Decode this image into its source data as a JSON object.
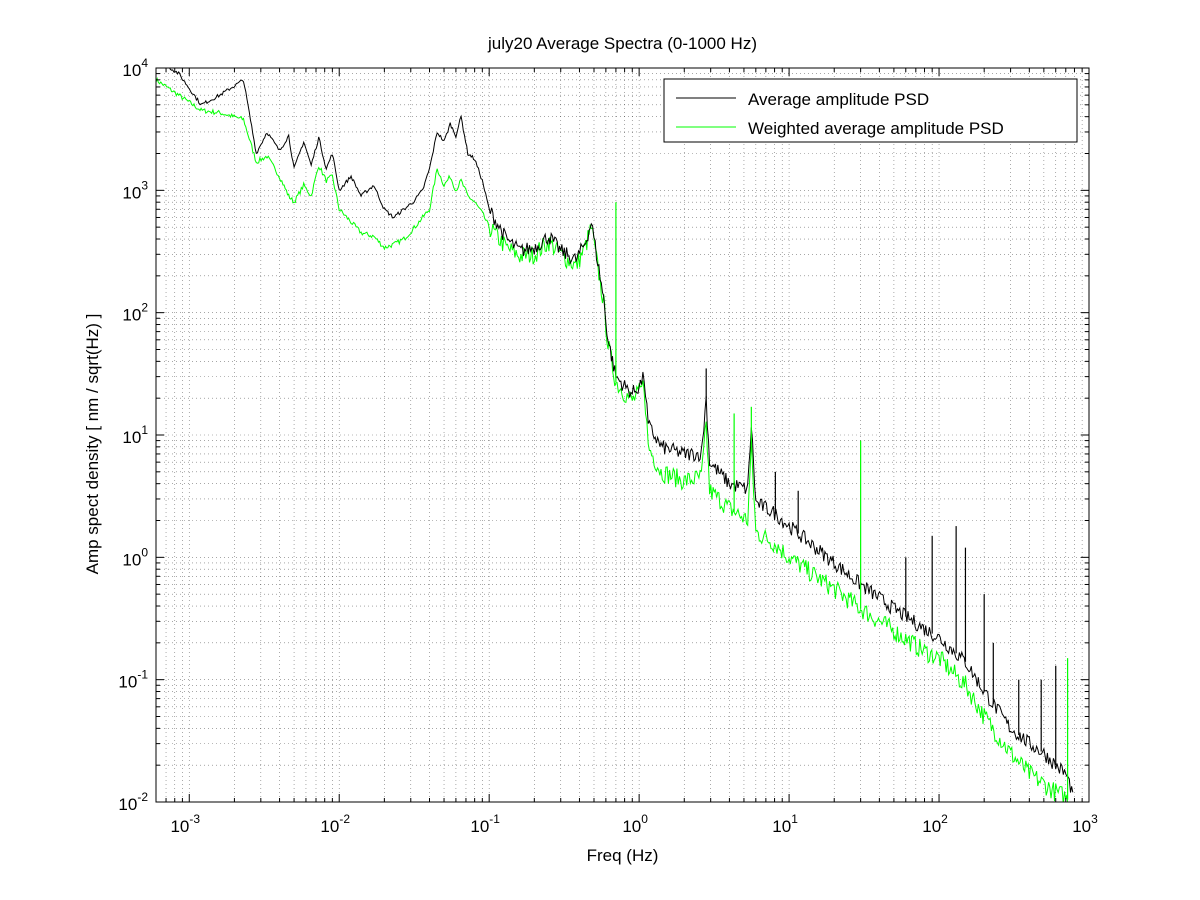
{
  "chart_data": {
    "type": "line",
    "title": "july20 Average Spectra (0-1000 Hz)",
    "xlabel": "Freq (Hz)",
    "ylabel": "Amp spect density [ nm / sqrt(Hz) ]",
    "x_scale": "log",
    "y_scale": "log",
    "xlim": [
      0.0006,
      1000
    ],
    "ylim": [
      0.01,
      10000
    ],
    "grid": true,
    "legend_position": "top-right",
    "x_ticks": [
      {
        "value": 0.001,
        "base": "10",
        "exp": "-3"
      },
      {
        "value": 0.01,
        "base": "10",
        "exp": "-2"
      },
      {
        "value": 0.1,
        "base": "10",
        "exp": "-1"
      },
      {
        "value": 1,
        "base": "10",
        "exp": "0"
      },
      {
        "value": 10,
        "base": "10",
        "exp": "1"
      },
      {
        "value": 100,
        "base": "10",
        "exp": "2"
      },
      {
        "value": 1000,
        "base": "10",
        "exp": "3"
      }
    ],
    "y_ticks": [
      {
        "value": 0.01,
        "base": "10",
        "exp": "-2"
      },
      {
        "value": 0.1,
        "base": "10",
        "exp": "-1"
      },
      {
        "value": 1,
        "base": "10",
        "exp": "0"
      },
      {
        "value": 10,
        "base": "10",
        "exp": "1"
      },
      {
        "value": 100,
        "base": "10",
        "exp": "2"
      },
      {
        "value": 1000,
        "base": "10",
        "exp": "3"
      },
      {
        "value": 10000,
        "base": "10",
        "exp": "4"
      }
    ],
    "series": [
      {
        "name": "Average amplitude PSD",
        "color": "#000000",
        "points": [
          [
            0.0006,
            12000
          ],
          [
            0.00085,
            9000
          ],
          [
            0.0012,
            5000
          ],
          [
            0.0016,
            6000
          ],
          [
            0.0023,
            8000
          ],
          [
            0.0028,
            2000
          ],
          [
            0.0033,
            3000
          ],
          [
            0.004,
            2100
          ],
          [
            0.0046,
            2800
          ],
          [
            0.005,
            1500
          ],
          [
            0.0058,
            2500
          ],
          [
            0.0065,
            1600
          ],
          [
            0.0073,
            2700
          ],
          [
            0.0082,
            1500
          ],
          [
            0.009,
            2000
          ],
          [
            0.01,
            1000
          ],
          [
            0.012,
            1300
          ],
          [
            0.014,
            900
          ],
          [
            0.017,
            1100
          ],
          [
            0.02,
            700
          ],
          [
            0.023,
            600
          ],
          [
            0.027,
            700
          ],
          [
            0.031,
            800
          ],
          [
            0.036,
            1000
          ],
          [
            0.04,
            1500
          ],
          [
            0.045,
            3000
          ],
          [
            0.05,
            2500
          ],
          [
            0.055,
            3500
          ],
          [
            0.06,
            2800
          ],
          [
            0.065,
            4000
          ],
          [
            0.072,
            2000
          ],
          [
            0.08,
            1800
          ],
          [
            0.09,
            1200
          ],
          [
            0.1,
            700
          ],
          [
            0.13,
            400
          ],
          [
            0.16,
            320
          ],
          [
            0.2,
            340
          ],
          [
            0.25,
            420
          ],
          [
            0.3,
            320
          ],
          [
            0.38,
            270
          ],
          [
            0.44,
            380
          ],
          [
            0.48,
            550
          ],
          [
            0.52,
            300
          ],
          [
            0.58,
            130
          ],
          [
            0.62,
            60
          ],
          [
            0.7,
            30
          ],
          [
            0.8,
            25
          ],
          [
            0.9,
            22
          ],
          [
            1.0,
            25
          ],
          [
            1.08,
            30
          ],
          [
            1.15,
            12
          ],
          [
            1.4,
            8
          ],
          [
            2.0,
            7
          ],
          [
            2.6,
            7
          ],
          [
            2.8,
            20
          ],
          [
            2.95,
            6
          ],
          [
            4,
            4
          ],
          [
            5.3,
            3.6
          ],
          [
            5.6,
            12
          ],
          [
            6,
            2.8
          ],
          [
            8,
            2.3
          ],
          [
            10,
            1.8
          ],
          [
            15,
            1.2
          ],
          [
            20,
            0.9
          ],
          [
            30,
            0.6
          ],
          [
            50,
            0.38
          ],
          [
            80,
            0.26
          ],
          [
            100,
            0.22
          ],
          [
            150,
            0.14
          ],
          [
            200,
            0.08
          ],
          [
            300,
            0.04
          ],
          [
            400,
            0.03
          ],
          [
            500,
            0.025
          ],
          [
            600,
            0.02
          ],
          [
            700,
            0.017
          ],
          [
            780,
            0.012
          ]
        ]
      },
      {
        "name": "Weighted average amplitude PSD",
        "color": "#00ff00",
        "points": [
          [
            0.0006,
            8000
          ],
          [
            0.00085,
            6000
          ],
          [
            0.0012,
            4500
          ],
          [
            0.0016,
            4300
          ],
          [
            0.0023,
            3800
          ],
          [
            0.0028,
            1700
          ],
          [
            0.0033,
            1900
          ],
          [
            0.004,
            1300
          ],
          [
            0.0046,
            900
          ],
          [
            0.005,
            800
          ],
          [
            0.0058,
            1100
          ],
          [
            0.0065,
            900
          ],
          [
            0.0073,
            1600
          ],
          [
            0.0082,
            1200
          ],
          [
            0.009,
            1300
          ],
          [
            0.01,
            700
          ],
          [
            0.012,
            550
          ],
          [
            0.014,
            450
          ],
          [
            0.017,
            420
          ],
          [
            0.02,
            340
          ],
          [
            0.023,
            360
          ],
          [
            0.027,
            400
          ],
          [
            0.031,
            480
          ],
          [
            0.036,
            600
          ],
          [
            0.04,
            700
          ],
          [
            0.045,
            1500
          ],
          [
            0.05,
            1100
          ],
          [
            0.055,
            1300
          ],
          [
            0.06,
            1000
          ],
          [
            0.065,
            1200
          ],
          [
            0.072,
            900
          ],
          [
            0.08,
            800
          ],
          [
            0.09,
            650
          ],
          [
            0.1,
            500
          ],
          [
            0.13,
            340
          ],
          [
            0.16,
            290
          ],
          [
            0.2,
            300
          ],
          [
            0.25,
            380
          ],
          [
            0.3,
            300
          ],
          [
            0.38,
            240
          ],
          [
            0.44,
            350
          ],
          [
            0.48,
            500
          ],
          [
            0.52,
            270
          ],
          [
            0.58,
            120
          ],
          [
            0.62,
            55
          ],
          [
            0.7,
            27
          ],
          [
            0.8,
            22
          ],
          [
            0.9,
            19
          ],
          [
            1.0,
            22
          ],
          [
            1.08,
            26
          ],
          [
            1.15,
            8
          ],
          [
            1.4,
            5
          ],
          [
            2.0,
            4.2
          ],
          [
            2.6,
            4.5
          ],
          [
            2.8,
            12
          ],
          [
            2.95,
            3.5
          ],
          [
            4,
            2.5
          ],
          [
            5.3,
            2
          ],
          [
            5.6,
            8
          ],
          [
            6,
            1.6
          ],
          [
            8,
            1.3
          ],
          [
            10,
            1.0
          ],
          [
            15,
            0.7
          ],
          [
            20,
            0.55
          ],
          [
            30,
            0.38
          ],
          [
            50,
            0.25
          ],
          [
            80,
            0.17
          ],
          [
            100,
            0.15
          ],
          [
            150,
            0.09
          ],
          [
            200,
            0.05
          ],
          [
            300,
            0.025
          ],
          [
            400,
            0.017
          ],
          [
            500,
            0.014
          ],
          [
            600,
            0.012
          ],
          [
            700,
            0.011
          ],
          [
            780,
            0.009
          ]
        ]
      }
    ],
    "spikes": [
      {
        "x": 0.7,
        "y": 800,
        "color": "#00ff00"
      },
      {
        "x": 2.8,
        "y": 35,
        "color": "#000000"
      },
      {
        "x": 4.3,
        "y": 15,
        "color": "#00ff00"
      },
      {
        "x": 5.6,
        "y": 17,
        "color": "#00ff00"
      },
      {
        "x": 8.1,
        "y": 5,
        "color": "#000000"
      },
      {
        "x": 11.5,
        "y": 3.5,
        "color": "#000000"
      },
      {
        "x": 30,
        "y": 9,
        "color": "#00ff00"
      },
      {
        "x": 60,
        "y": 1.0,
        "color": "#000000"
      },
      {
        "x": 90,
        "y": 1.5,
        "color": "#000000"
      },
      {
        "x": 130,
        "y": 1.8,
        "color": "#000000"
      },
      {
        "x": 150,
        "y": 1.2,
        "color": "#000000"
      },
      {
        "x": 200,
        "y": 0.5,
        "color": "#000000"
      },
      {
        "x": 230,
        "y": 0.2,
        "color": "#000000"
      },
      {
        "x": 340,
        "y": 0.1,
        "color": "#000000"
      },
      {
        "x": 480,
        "y": 0.1,
        "color": "#000000"
      },
      {
        "x": 600,
        "y": 0.13,
        "color": "#000000"
      },
      {
        "x": 720,
        "y": 0.15,
        "color": "#00ff00"
      }
    ]
  }
}
